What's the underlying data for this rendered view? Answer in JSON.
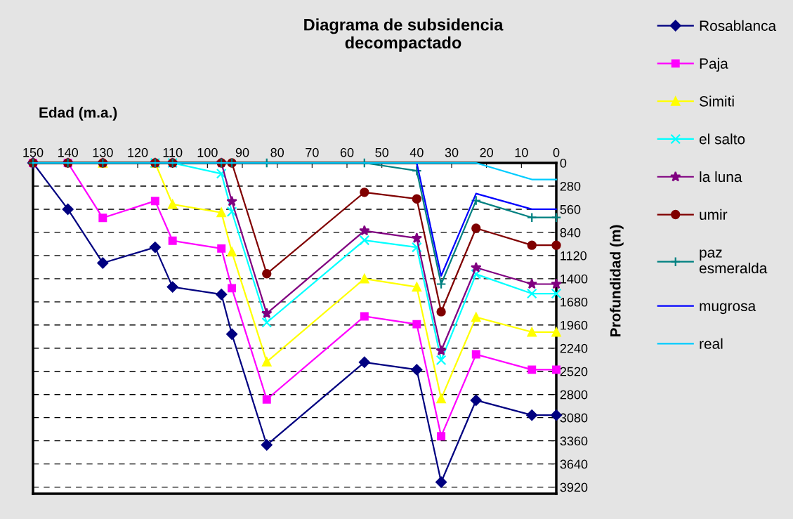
{
  "chart_data": {
    "type": "line",
    "title": "Diagrama de subsidencia\ndecompactado",
    "xlabel": "Edad (m.a.)",
    "ylabel": "Profundidad (m)",
    "x": [
      150,
      140,
      130,
      115,
      110,
      96,
      93,
      83,
      55,
      40,
      33,
      23,
      7,
      0
    ],
    "xlim": [
      150,
      0
    ],
    "xticks": [
      150,
      140,
      130,
      120,
      110,
      100,
      90,
      80,
      70,
      60,
      50,
      40,
      30,
      20,
      10,
      0
    ],
    "ylim": [
      4000,
      0
    ],
    "yticks": [
      0,
      280,
      560,
      840,
      1120,
      1400,
      1680,
      1960,
      2240,
      2520,
      2800,
      3080,
      3360,
      3640,
      3920
    ],
    "grid": "y",
    "legend": "right",
    "line_style": "solid",
    "series": [
      {
        "name": "Rosablanca",
        "color": "#000080",
        "marker": "diamond",
        "values": [
          0,
          560,
          1210,
          1020,
          1500,
          1590,
          2070,
          3410,
          2410,
          2500,
          3860,
          2870,
          3050,
          3050
        ]
      },
      {
        "name": "Paja",
        "color": "#ff00ff",
        "marker": "square",
        "values": [
          0,
          0,
          665,
          460,
          940,
          1035,
          1515,
          2860,
          1855,
          1950,
          3305,
          2315,
          2500,
          2500
        ]
      },
      {
        "name": "Simiti",
        "color": "#ffff00",
        "marker": "triangle",
        "values": [
          null,
          null,
          0,
          0,
          500,
          600,
          1075,
          2405,
          1400,
          1500,
          2850,
          1865,
          2045,
          2045
        ]
      },
      {
        "name": "el salto",
        "color": "#00ffff",
        "marker": "cross",
        "values": [
          null,
          null,
          null,
          0,
          0,
          130,
          590,
          1930,
          935,
          1020,
          2385,
          1345,
          1580,
          1580
        ]
      },
      {
        "name": "la luna",
        "color": "#800080",
        "marker": "star",
        "values": [
          0,
          0,
          0,
          0,
          0,
          0,
          465,
          1820,
          820,
          910,
          2270,
          1265,
          1465,
          1465
        ]
      },
      {
        "name": "umir",
        "color": "#800000",
        "marker": "circle",
        "values": [
          0,
          0,
          0,
          0,
          0,
          0,
          0,
          1340,
          355,
          435,
          1800,
          790,
          995,
          995
        ]
      },
      {
        "name": "paz\nesmeralda",
        "color": "#008080",
        "marker": "plus",
        "values": [
          0,
          0,
          0,
          0,
          0,
          0,
          0,
          0,
          0,
          95,
          1465,
          455,
          660,
          660
        ]
      },
      {
        "name": "mugrosa",
        "color": "#0000ff",
        "marker": "none",
        "values": [
          null,
          null,
          null,
          null,
          null,
          null,
          null,
          null,
          null,
          0,
          1365,
          370,
          560,
          560
        ]
      },
      {
        "name": "real",
        "color": "#00ccff",
        "marker": "none",
        "values": [
          0,
          0,
          0,
          0,
          0,
          0,
          0,
          0,
          0,
          0,
          0,
          0,
          200,
          200
        ]
      }
    ]
  }
}
